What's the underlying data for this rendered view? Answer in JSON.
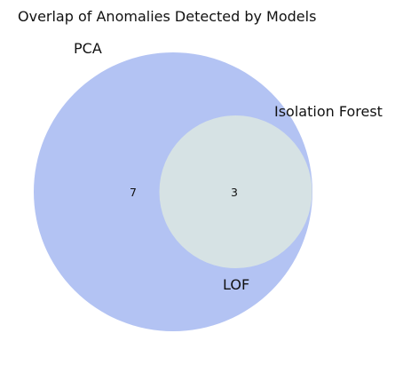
{
  "chart_data": {
    "type": "venn",
    "title": "Overlap of Anomalies Detected by Models",
    "sets": [
      {
        "name": "PCA",
        "color": "#b3c3f3"
      },
      {
        "name": "Isolation Forest",
        "color": "#d6e2e4"
      },
      {
        "name": "LOF",
        "color": "#d6e2e4"
      }
    ],
    "regions": [
      {
        "sets": [
          "PCA"
        ],
        "count": 7
      },
      {
        "sets": [
          "PCA",
          "Isolation Forest",
          "LOF"
        ],
        "count": 3
      }
    ],
    "overlap_color": "#d6e2e4",
    "legend": "none"
  }
}
